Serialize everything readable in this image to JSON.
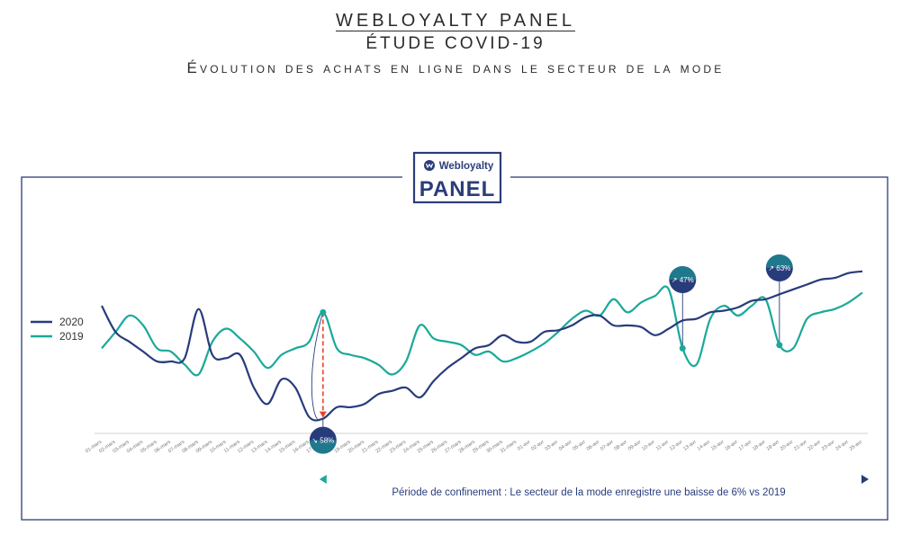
{
  "header": {
    "title": "WEBLOYALTY PANEL",
    "subtitle": "ÉTUDE COVID-19",
    "description": "Évolution des achats en ligne dans le secteur de la mode"
  },
  "logo": {
    "brand": "Webloyalty",
    "label": "PANEL"
  },
  "colors": {
    "s2020": "#283c7c",
    "s2019": "#1aa99a",
    "frame": "#2b3d7a",
    "arrow": "#e8452c"
  },
  "chart_data": {
    "type": "line",
    "title": "Évolution des achats en ligne dans le secteur de la mode",
    "xlabel": "",
    "ylabel": "",
    "ylim": [
      0,
      100
    ],
    "grid": "vertical",
    "legend": "left",
    "categories": [
      "01-mars",
      "02-mars",
      "03-mars",
      "04-mars",
      "05-mars",
      "06-mars",
      "07-mars",
      "08-mars",
      "09-mars",
      "10-mars",
      "11-mars",
      "12-mars",
      "13-mars",
      "14-mars",
      "15-mars",
      "16-mars",
      "17-mars",
      "18-mars",
      "19-mars",
      "20-mars",
      "21-mars",
      "22-mars",
      "23-mars",
      "24-mars",
      "25-mars",
      "26-mars",
      "27-mars",
      "28-mars",
      "29-mars",
      "30-mars",
      "31-mars",
      "01-avr",
      "02-avr",
      "03-avr",
      "04-avr",
      "05-avr",
      "06-avr",
      "07-avr",
      "08-avr",
      "09-avr",
      "10-avr",
      "11-avr",
      "12-avr",
      "13-avr",
      "14-avr",
      "15-avr",
      "16-avr",
      "17-avr",
      "18-avr",
      "19-avr",
      "20-avr",
      "21-avr",
      "22-avr",
      "23-avr",
      "24-avr",
      "25-avr"
    ],
    "series": [
      {
        "name": "2020",
        "values": [
          78,
          62,
          56,
          50,
          44,
          44,
          46,
          76,
          48,
          46,
          48,
          28,
          18,
          33,
          28,
          10,
          9,
          16,
          16,
          18,
          24,
          26,
          28,
          22,
          32,
          40,
          46,
          52,
          54,
          60,
          56,
          56,
          62,
          63,
          66,
          71,
          72,
          66,
          66,
          65,
          60,
          64,
          69,
          70,
          74,
          75,
          77,
          81,
          82,
          85,
          88,
          91,
          94,
          95,
          98,
          99
        ]
      },
      {
        "name": "2019",
        "values": [
          52,
          62,
          72,
          66,
          52,
          50,
          42,
          36,
          56,
          64,
          58,
          50,
          40,
          48,
          52,
          56,
          74,
          52,
          48,
          46,
          42,
          36,
          44,
          66,
          58,
          56,
          54,
          48,
          50,
          44,
          46,
          50,
          55,
          62,
          70,
          75,
          72,
          82,
          74,
          80,
          84,
          88,
          52,
          42,
          70,
          78,
          72,
          78,
          82,
          54,
          52,
          70,
          74,
          76,
          80,
          86
        ]
      }
    ],
    "annotations": [
      {
        "label": "↘ 58%",
        "at": "17-mars",
        "series": "2020",
        "direction": "down"
      },
      {
        "label": "↗ 47%",
        "at": "12-avr",
        "series": "2020",
        "direction": "up"
      },
      {
        "label": "↗ 63%",
        "at": "19-avr",
        "series": "2020",
        "direction": "up"
      }
    ],
    "period": {
      "label": "Période de confinement : Le secteur de la mode enregistre une baisse de 6% vs 2019",
      "from": "17-mars",
      "to": "25-avr"
    }
  }
}
